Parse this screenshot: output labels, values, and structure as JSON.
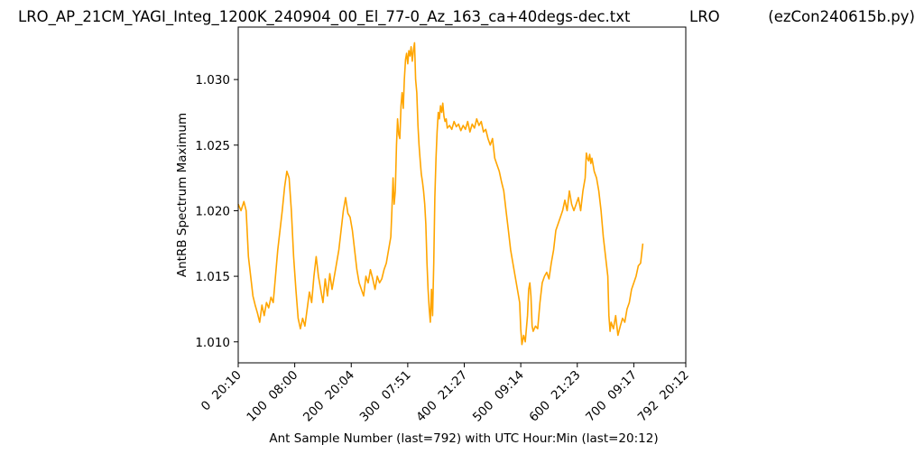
{
  "header": {
    "filename": "LRO_AP_21CM_YAGI_Integ_1200K_240904_00_El_77-0_Az_163_ca+40degs-dec.txt",
    "site": "LRO",
    "program": "(ezCon240615b.py)"
  },
  "chart_data": {
    "type": "line",
    "xlabel": "Ant Sample Number (last=792) with UTC Hour:Min (last=20:12)",
    "ylabel": "AntRB Spectrum Maximum",
    "xlim": [
      0,
      792
    ],
    "ylim": [
      1.0084,
      1.034
    ],
    "grid": false,
    "line_color": "#FFA500",
    "x_ticks": [
      {
        "value": 0,
        "label": "0  20:10"
      },
      {
        "value": 100,
        "label": "100  08:00"
      },
      {
        "value": 200,
        "label": "200  20:04"
      },
      {
        "value": 300,
        "label": "300  07:51"
      },
      {
        "value": 400,
        "label": "400  21:27"
      },
      {
        "value": 500,
        "label": "500  09:14"
      },
      {
        "value": 600,
        "label": "600  21:23"
      },
      {
        "value": 700,
        "label": "700  09:17"
      },
      {
        "value": 792,
        "label": "792  20:12"
      }
    ],
    "y_ticks": [
      {
        "value": 1.01,
        "label": "1.010"
      },
      {
        "value": 1.015,
        "label": "1.015"
      },
      {
        "value": 1.02,
        "label": "1.020"
      },
      {
        "value": 1.025,
        "label": "1.025"
      },
      {
        "value": 1.03,
        "label": "1.030"
      }
    ],
    "series": [
      {
        "points": [
          [
            0,
            1.0205
          ],
          [
            5,
            1.02
          ],
          [
            10,
            1.0207
          ],
          [
            14,
            1.02
          ],
          [
            18,
            1.0165
          ],
          [
            22,
            1.015
          ],
          [
            26,
            1.0135
          ],
          [
            30,
            1.0128
          ],
          [
            34,
            1.0122
          ],
          [
            38,
            1.0115
          ],
          [
            42,
            1.0128
          ],
          [
            46,
            1.012
          ],
          [
            50,
            1.013
          ],
          [
            54,
            1.0126
          ],
          [
            58,
            1.0134
          ],
          [
            62,
            1.013
          ],
          [
            66,
            1.015
          ],
          [
            70,
            1.017
          ],
          [
            74,
            1.0185
          ],
          [
            78,
            1.02
          ],
          [
            82,
            1.0218
          ],
          [
            86,
            1.023
          ],
          [
            90,
            1.0225
          ],
          [
            94,
            1.02
          ],
          [
            98,
            1.0165
          ],
          [
            102,
            1.014
          ],
          [
            106,
            1.0118
          ],
          [
            110,
            1.011
          ],
          [
            114,
            1.0118
          ],
          [
            118,
            1.0112
          ],
          [
            122,
            1.0125
          ],
          [
            126,
            1.0138
          ],
          [
            130,
            1.013
          ],
          [
            134,
            1.015
          ],
          [
            138,
            1.0165
          ],
          [
            142,
            1.015
          ],
          [
            146,
            1.014
          ],
          [
            150,
            1.013
          ],
          [
            154,
            1.0148
          ],
          [
            158,
            1.0135
          ],
          [
            162,
            1.0152
          ],
          [
            166,
            1.014
          ],
          [
            170,
            1.015
          ],
          [
            174,
            1.016
          ],
          [
            178,
            1.017
          ],
          [
            182,
            1.0185
          ],
          [
            186,
            1.02
          ],
          [
            190,
            1.021
          ],
          [
            194,
            1.0198
          ],
          [
            198,
            1.0195
          ],
          [
            202,
            1.0185
          ],
          [
            206,
            1.017
          ],
          [
            210,
            1.0155
          ],
          [
            214,
            1.0145
          ],
          [
            218,
            1.014
          ],
          [
            222,
            1.0135
          ],
          [
            226,
            1.015
          ],
          [
            230,
            1.0145
          ],
          [
            234,
            1.0155
          ],
          [
            238,
            1.0148
          ],
          [
            242,
            1.014
          ],
          [
            246,
            1.015
          ],
          [
            250,
            1.0145
          ],
          [
            254,
            1.0148
          ],
          [
            258,
            1.0155
          ],
          [
            262,
            1.016
          ],
          [
            266,
            1.017
          ],
          [
            270,
            1.018
          ],
          [
            272,
            1.02
          ],
          [
            274,
            1.0225
          ],
          [
            276,
            1.0205
          ],
          [
            278,
            1.0215
          ],
          [
            280,
            1.025
          ],
          [
            282,
            1.027
          ],
          [
            284,
            1.0258
          ],
          [
            286,
            1.0255
          ],
          [
            288,
            1.028
          ],
          [
            290,
            1.029
          ],
          [
            292,
            1.0278
          ],
          [
            294,
            1.03
          ],
          [
            296,
            1.0315
          ],
          [
            298,
            1.032
          ],
          [
            300,
            1.0312
          ],
          [
            302,
            1.0322
          ],
          [
            304,
            1.0318
          ],
          [
            306,
            1.0325
          ],
          [
            308,
            1.0314
          ],
          [
            310,
            1.0322
          ],
          [
            312,
            1.0328
          ],
          [
            314,
            1.03
          ],
          [
            316,
            1.029
          ],
          [
            318,
            1.0265
          ],
          [
            320,
            1.025
          ],
          [
            322,
            1.0238
          ],
          [
            324,
            1.0228
          ],
          [
            326,
            1.0222
          ],
          [
            328,
            1.0215
          ],
          [
            330,
            1.0205
          ],
          [
            332,
            1.019
          ],
          [
            334,
            1.016
          ],
          [
            336,
            1.014
          ],
          [
            338,
            1.0125
          ],
          [
            340,
            1.0115
          ],
          [
            342,
            1.014
          ],
          [
            344,
            1.012
          ],
          [
            346,
            1.016
          ],
          [
            348,
            1.021
          ],
          [
            350,
            1.024
          ],
          [
            352,
            1.026
          ],
          [
            354,
            1.0275
          ],
          [
            356,
            1.027
          ],
          [
            358,
            1.028
          ],
          [
            360,
            1.0275
          ],
          [
            362,
            1.0282
          ],
          [
            364,
            1.0272
          ],
          [
            366,
            1.0268
          ],
          [
            368,
            1.027
          ],
          [
            370,
            1.0263
          ],
          [
            374,
            1.0265
          ],
          [
            378,
            1.0262
          ],
          [
            382,
            1.0268
          ],
          [
            386,
            1.0264
          ],
          [
            390,
            1.0266
          ],
          [
            394,
            1.0261
          ],
          [
            398,
            1.0265
          ],
          [
            402,
            1.0262
          ],
          [
            406,
            1.0268
          ],
          [
            410,
            1.026
          ],
          [
            414,
            1.0266
          ],
          [
            418,
            1.0263
          ],
          [
            422,
            1.027
          ],
          [
            426,
            1.0265
          ],
          [
            430,
            1.0268
          ],
          [
            434,
            1.026
          ],
          [
            438,
            1.0262
          ],
          [
            442,
            1.0255
          ],
          [
            446,
            1.025
          ],
          [
            450,
            1.0255
          ],
          [
            454,
            1.024
          ],
          [
            458,
            1.0235
          ],
          [
            462,
            1.023
          ],
          [
            466,
            1.0222
          ],
          [
            470,
            1.0215
          ],
          [
            474,
            1.02
          ],
          [
            478,
            1.0185
          ],
          [
            482,
            1.017
          ],
          [
            486,
            1.016
          ],
          [
            490,
            1.015
          ],
          [
            494,
            1.014
          ],
          [
            498,
            1.013
          ],
          [
            500,
            1.011
          ],
          [
            502,
            1.0098
          ],
          [
            505,
            1.0105
          ],
          [
            508,
            1.01
          ],
          [
            512,
            1.012
          ],
          [
            514,
            1.014
          ],
          [
            516,
            1.0145
          ],
          [
            518,
            1.0135
          ],
          [
            520,
            1.0112
          ],
          [
            522,
            1.0108
          ],
          [
            526,
            1.0112
          ],
          [
            530,
            1.011
          ],
          [
            534,
            1.013
          ],
          [
            538,
            1.0145
          ],
          [
            542,
            1.015
          ],
          [
            546,
            1.0153
          ],
          [
            550,
            1.0148
          ],
          [
            554,
            1.016
          ],
          [
            558,
            1.017
          ],
          [
            562,
            1.0185
          ],
          [
            566,
            1.019
          ],
          [
            570,
            1.0195
          ],
          [
            574,
            1.02
          ],
          [
            578,
            1.0208
          ],
          [
            582,
            1.02
          ],
          [
            586,
            1.0215
          ],
          [
            590,
            1.0205
          ],
          [
            594,
            1.02
          ],
          [
            598,
            1.0205
          ],
          [
            602,
            1.021
          ],
          [
            606,
            1.02
          ],
          [
            610,
            1.0215
          ],
          [
            614,
            1.0225
          ],
          [
            616,
            1.0244
          ],
          [
            618,
            1.024
          ],
          [
            620,
            1.0238
          ],
          [
            622,
            1.0243
          ],
          [
            624,
            1.0236
          ],
          [
            626,
            1.024
          ],
          [
            628,
            1.0235
          ],
          [
            630,
            1.023
          ],
          [
            634,
            1.0225
          ],
          [
            638,
            1.0215
          ],
          [
            642,
            1.02
          ],
          [
            646,
            1.018
          ],
          [
            650,
            1.0165
          ],
          [
            654,
            1.015
          ],
          [
            656,
            1.012
          ],
          [
            658,
            1.0108
          ],
          [
            660,
            1.0115
          ],
          [
            664,
            1.011
          ],
          [
            668,
            1.012
          ],
          [
            672,
            1.0105
          ],
          [
            676,
            1.0112
          ],
          [
            680,
            1.0118
          ],
          [
            684,
            1.0115
          ],
          [
            688,
            1.0125
          ],
          [
            692,
            1.013
          ],
          [
            696,
            1.014
          ],
          [
            700,
            1.0145
          ],
          [
            704,
            1.015
          ],
          [
            708,
            1.0158
          ],
          [
            712,
            1.016
          ],
          [
            716,
            1.0175
          ]
        ]
      }
    ]
  }
}
